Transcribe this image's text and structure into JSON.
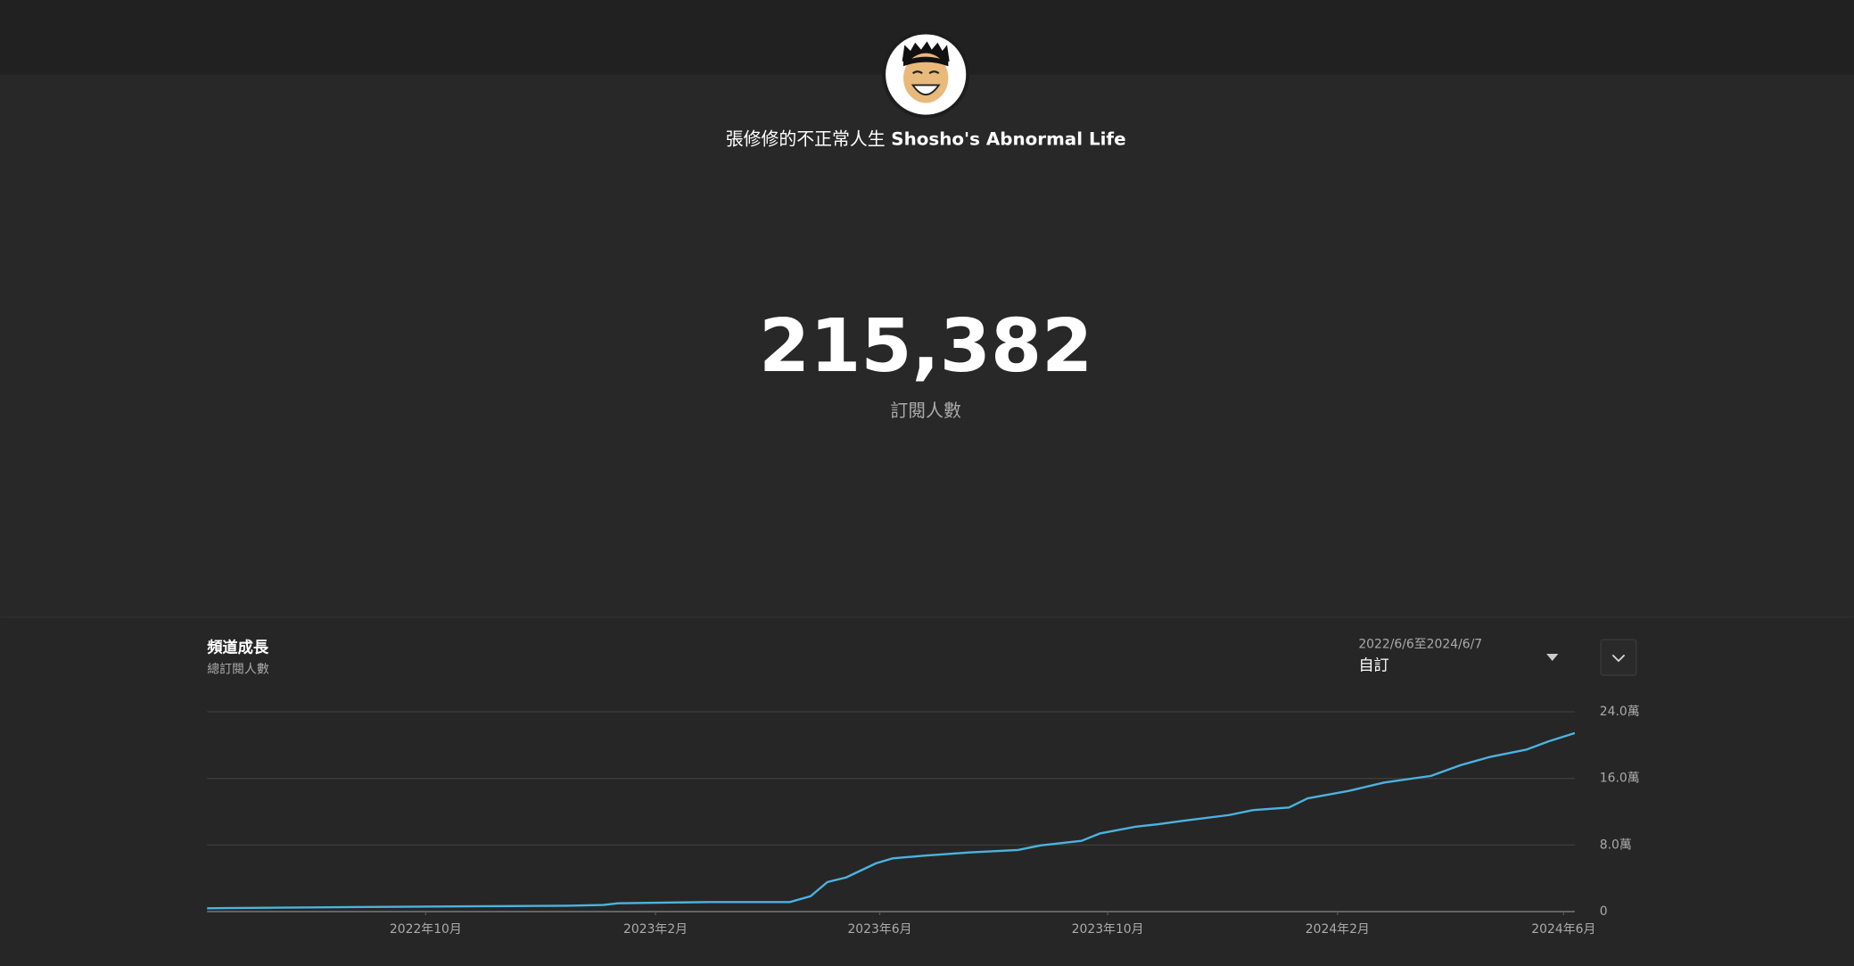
{
  "channel": {
    "name_zh": "張修修的不正常人生",
    "name_en": "Shosho's Abnormal Life"
  },
  "subscriber_count": "215,382",
  "subscriber_label": "訂閱人數",
  "card": {
    "title": "頻道成長",
    "subtitle": "總訂閱人數",
    "date_range": "2022/6/6至2024/6/7",
    "range_mode": "自訂"
  },
  "chart_data": {
    "type": "line",
    "x": [
      "2022-06-06",
      "2022-08-23",
      "2022-12-16",
      "2023-01-04",
      "2023-01-12",
      "2023-03-02",
      "2023-04-14",
      "2023-04-25",
      "2023-05-04",
      "2023-05-14",
      "2023-05-30",
      "2023-06-08",
      "2023-06-24",
      "2023-07-19",
      "2023-08-14",
      "2023-08-26",
      "2023-09-17",
      "2023-09-27",
      "2023-10-16",
      "2023-10-28",
      "2023-11-10",
      "2023-12-05",
      "2023-12-18",
      "2024-01-06",
      "2024-01-16",
      "2024-02-07",
      "2024-02-26",
      "2024-03-22",
      "2024-04-07",
      "2024-04-23",
      "2024-05-12",
      "2024-05-24",
      "2024-06-07"
    ],
    "series": [
      {
        "name": "總訂閱人數",
        "color": "#4bb3e0",
        "values": [
          4000,
          5500,
          7000,
          8000,
          10000,
          11500,
          11500,
          18500,
          35500,
          41000,
          58000,
          64000,
          67000,
          71000,
          74000,
          79500,
          85000,
          94000,
          102000,
          105000,
          109000,
          116000,
          122000,
          125000,
          136000,
          145000,
          155000,
          163000,
          176000,
          186000,
          194500,
          204500,
          214400
        ]
      }
    ],
    "xlim": [
      "2022-06-06",
      "2024-06-07"
    ],
    "xticks": [
      {
        "value": "2022-10-01",
        "label": "2022年10月"
      },
      {
        "value": "2023-02-01",
        "label": "2023年2月"
      },
      {
        "value": "2023-06-01",
        "label": "2023年6月"
      },
      {
        "value": "2023-10-01",
        "label": "2023年10月"
      },
      {
        "value": "2024-02-01",
        "label": "2024年2月"
      },
      {
        "value": "2024-06-01",
        "label": "2024年6月"
      }
    ],
    "ylim": [
      0,
      240000
    ],
    "yticks": [
      0,
      {
        "value": 80000,
        "label": "8.0萬"
      },
      {
        "value": 160000,
        "label": "16.0萬"
      },
      {
        "value": 240000,
        "label": "24.0萬"
      }
    ],
    "grid": true
  }
}
